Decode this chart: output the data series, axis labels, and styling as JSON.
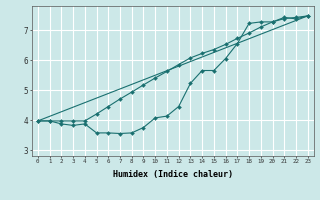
{
  "xlabel": "Humidex (Indice chaleur)",
  "bg_color": "#cce8e8",
  "grid_color": "#ffffff",
  "line_color": "#1a7070",
  "xlim": [
    -0.5,
    23.5
  ],
  "ylim": [
    2.8,
    7.8
  ],
  "xticks": [
    0,
    1,
    2,
    3,
    4,
    5,
    6,
    7,
    8,
    9,
    10,
    11,
    12,
    13,
    14,
    15,
    16,
    17,
    18,
    19,
    20,
    21,
    22,
    23
  ],
  "yticks": [
    3,
    4,
    5,
    6,
    7
  ],
  "line1_x": [
    0,
    1,
    2,
    3,
    4,
    5,
    6,
    7,
    8,
    9,
    10,
    11,
    12,
    13,
    14,
    15,
    16,
    17,
    18,
    19,
    20,
    21,
    22,
    23
  ],
  "line1_y": [
    3.97,
    3.97,
    3.87,
    3.82,
    3.87,
    3.57,
    3.57,
    3.55,
    3.57,
    3.75,
    4.07,
    4.13,
    4.45,
    5.22,
    5.65,
    5.65,
    6.05,
    6.55,
    7.22,
    7.27,
    7.27,
    7.42,
    7.37,
    7.47
  ],
  "line2_x": [
    0,
    23
  ],
  "line2_y": [
    3.97,
    7.47
  ],
  "line3_x": [
    0,
    1,
    2,
    3,
    4,
    5,
    6,
    7,
    8,
    9,
    10,
    11,
    12,
    13,
    14,
    15,
    16,
    17,
    18,
    19,
    20,
    21,
    22,
    23
  ],
  "line3_y": [
    3.97,
    3.97,
    3.97,
    3.97,
    3.97,
    4.2,
    4.45,
    4.7,
    4.93,
    5.17,
    5.4,
    5.62,
    5.85,
    6.07,
    6.22,
    6.35,
    6.52,
    6.72,
    6.9,
    7.1,
    7.27,
    7.38,
    7.42,
    7.47
  ]
}
